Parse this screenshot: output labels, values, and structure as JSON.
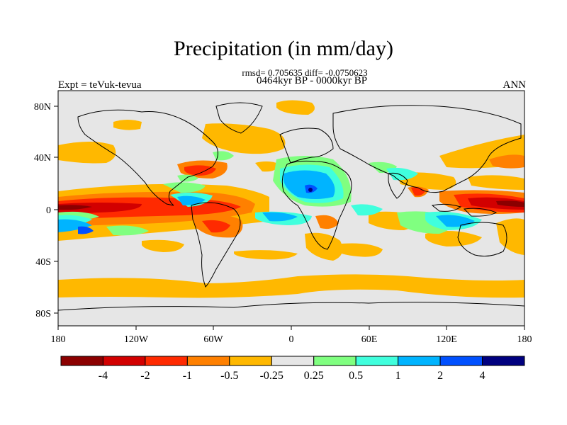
{
  "header": {
    "title": "Precipitation (in mm/day)",
    "stats": "rmsd= 0.705635 diff= -0.0750623",
    "period": "0464kyr BP - 0000kyr BP",
    "left_label": "Expt = teVuk-tevua",
    "right_label": "ANN"
  },
  "map": {
    "type": "filled-contour-world-map",
    "lon_ticks": [
      "180",
      "120W",
      "60W",
      "0",
      "60E",
      "120E",
      "180"
    ],
    "lat_ticks": [
      "80N",
      "40N",
      "0",
      "40S",
      "80S"
    ],
    "background_color": "#e6e6e6"
  },
  "colorbar": {
    "labels": [
      "-4",
      "-2",
      "-1",
      "-0.5",
      "-0.25",
      "0.25",
      "0.5",
      "1",
      "2",
      "4"
    ],
    "colors": [
      "#8b0000",
      "#d20000",
      "#ff2a00",
      "#ff8000",
      "#ffb800",
      "#e6e6e6",
      "#80ff80",
      "#40ffdd",
      "#00b4ff",
      "#0050ff",
      "#00007f"
    ]
  }
}
